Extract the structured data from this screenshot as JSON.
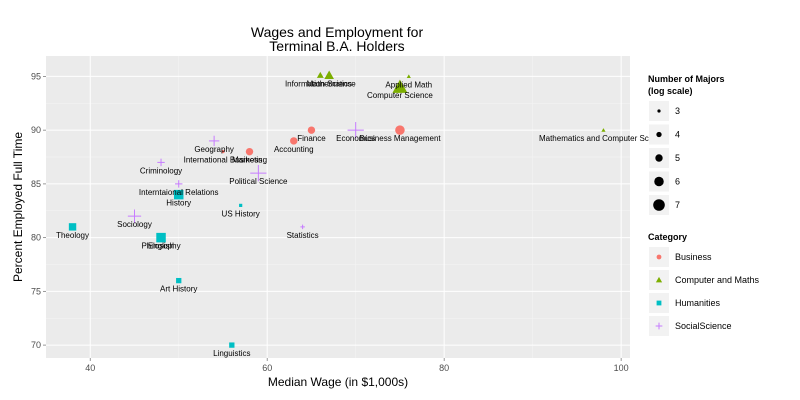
{
  "chart_data": {
    "type": "scatter",
    "title": [
      "Wages and Employment for",
      "Terminal B.A. Holders"
    ],
    "xlabel": "Median Wage (in $1,000s)",
    "ylabel": "Percent Employed Full Time",
    "xlim": [
      35,
      101
    ],
    "ylim": [
      68.8,
      96.9
    ],
    "xticks": [
      40,
      60,
      80,
      100
    ],
    "yticks": [
      70,
      75,
      80,
      85,
      90,
      95
    ],
    "grid": true,
    "legend_placement": "right",
    "size_legend": {
      "title": [
        "Number of Majors",
        "(log scale)"
      ],
      "values": [
        3,
        4,
        5,
        6,
        7
      ]
    },
    "color_legend": {
      "title": "Category",
      "entries": [
        {
          "name": "Business",
          "color": "#F8766D",
          "shape": "circle"
        },
        {
          "name": "Computer and Maths",
          "color": "#7CAE00",
          "shape": "triangle"
        },
        {
          "name": "Humanities",
          "color": "#00BFC4",
          "shape": "square"
        },
        {
          "name": "SocialScience",
          "color": "#C77CFF",
          "shape": "plus"
        }
      ]
    },
    "points": [
      {
        "label": "Information Science",
        "x": 66,
        "y": 95.1,
        "category": "Computer and Maths",
        "size": 4
      },
      {
        "label": "Mathematics",
        "x": 67,
        "y": 95.1,
        "category": "Computer and Maths",
        "size": 5
      },
      {
        "label": "Applied Math",
        "x": 76,
        "y": 95.0,
        "category": "Computer and Maths",
        "size": 3
      },
      {
        "label": "Computer Science",
        "x": 75,
        "y": 94.0,
        "category": "Computer and Maths",
        "size": 7
      },
      {
        "label": "Mathematics and Computer Science",
        "x": 98,
        "y": 90.0,
        "category": "Computer and Maths",
        "size": 3
      },
      {
        "label": "Business Management",
        "x": 75,
        "y": 90.0,
        "category": "Business",
        "size": 6
      },
      {
        "label": "Finance",
        "x": 65,
        "y": 90.0,
        "category": "Business",
        "size": 5
      },
      {
        "label": "Accounting",
        "x": 63,
        "y": 89.0,
        "category": "Business",
        "size": 5
      },
      {
        "label": "Marketing",
        "x": 58,
        "y": 88.0,
        "category": "Business",
        "size": 5
      },
      {
        "label": "International Business",
        "x": 55,
        "y": 88.0,
        "category": "Business",
        "size": 3
      },
      {
        "label": "Economics",
        "x": 70,
        "y": 90.0,
        "category": "SocialScience",
        "size": 7
      },
      {
        "label": "Geography",
        "x": 54,
        "y": 89.0,
        "category": "SocialScience",
        "size": 5
      },
      {
        "label": "Criminology",
        "x": 48,
        "y": 87.0,
        "category": "SocialScience",
        "size": 4
      },
      {
        "label": "Political Science",
        "x": 59,
        "y": 86.0,
        "category": "SocialScience",
        "size": 7
      },
      {
        "label": "Interntaional Relations",
        "x": 50,
        "y": 85.0,
        "category": "SocialScience",
        "size": 4
      },
      {
        "label": "Sociology",
        "x": 45,
        "y": 82.0,
        "category": "SocialScience",
        "size": 6
      },
      {
        "label": "Statistics",
        "x": 64,
        "y": 81.0,
        "category": "SocialScience",
        "size": 3
      },
      {
        "label": "History",
        "x": 50,
        "y": 84.0,
        "category": "Humanities",
        "size": 6
      },
      {
        "label": "US History",
        "x": 57,
        "y": 83.0,
        "category": "Humanities",
        "size": 3
      },
      {
        "label": "Theology",
        "x": 38,
        "y": 81.0,
        "category": "Humanities",
        "size": 5
      },
      {
        "label": "Philosophy",
        "x": 48,
        "y": 80.0,
        "category": "Humanities",
        "size": 5
      },
      {
        "label": "English",
        "x": 48,
        "y": 80.0,
        "category": "Humanities",
        "size": 6
      },
      {
        "label": "Art History",
        "x": 50,
        "y": 76.0,
        "category": "Humanities",
        "size": 4
      },
      {
        "label": "Linguistics",
        "x": 56,
        "y": 70.0,
        "category": "Humanities",
        "size": 4
      }
    ]
  }
}
